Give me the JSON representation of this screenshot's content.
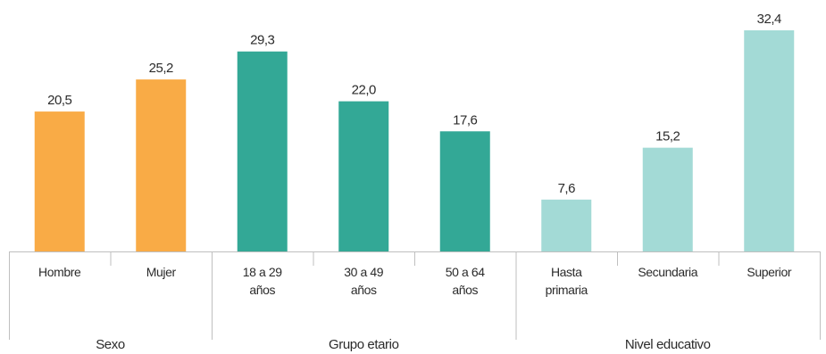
{
  "chart_data": {
    "type": "bar",
    "title": "",
    "xlabel": "",
    "ylabel": "",
    "ylim": [
      0,
      34
    ],
    "grid": false,
    "legend": "none",
    "categories": [
      {
        "lines": [
          "Hombre"
        ],
        "group": "Sexo",
        "value": 20.5,
        "label": "20,5",
        "color": "#F9AB46"
      },
      {
        "lines": [
          "Mujer"
        ],
        "group": "Sexo",
        "value": 25.2,
        "label": "25,2",
        "color": "#F9AB46"
      },
      {
        "lines": [
          "18 a 29",
          "años"
        ],
        "group": "Grupo etario",
        "value": 29.3,
        "label": "29,3",
        "color": "#33A896"
      },
      {
        "lines": [
          "30 a 49",
          "años"
        ],
        "group": "Grupo etario",
        "value": 22.0,
        "label": "22,0",
        "color": "#33A896"
      },
      {
        "lines": [
          "50 a 64",
          "años"
        ],
        "group": "Grupo etario",
        "value": 17.6,
        "label": "17,6",
        "color": "#33A896"
      },
      {
        "lines": [
          "Hasta",
          "primaria"
        ],
        "group": "Nivel educativo",
        "value": 7.6,
        "label": "7,6",
        "color": "#A3DAD6"
      },
      {
        "lines": [
          "Secundaria"
        ],
        "group": "Nivel educativo",
        "value": 15.2,
        "label": "15,2",
        "color": "#A3DAD6"
      },
      {
        "lines": [
          "Superior"
        ],
        "group": "Nivel educativo",
        "value": 32.4,
        "label": "32,4",
        "color": "#A3DAD6"
      }
    ],
    "groups": [
      {
        "name": "Sexo",
        "count": 2
      },
      {
        "name": "Grupo etario",
        "count": 3
      },
      {
        "name": "Nivel educativo",
        "count": 3
      }
    ]
  },
  "colors": {
    "axis": "#BFBFBF",
    "text": "#2b2b2b"
  }
}
